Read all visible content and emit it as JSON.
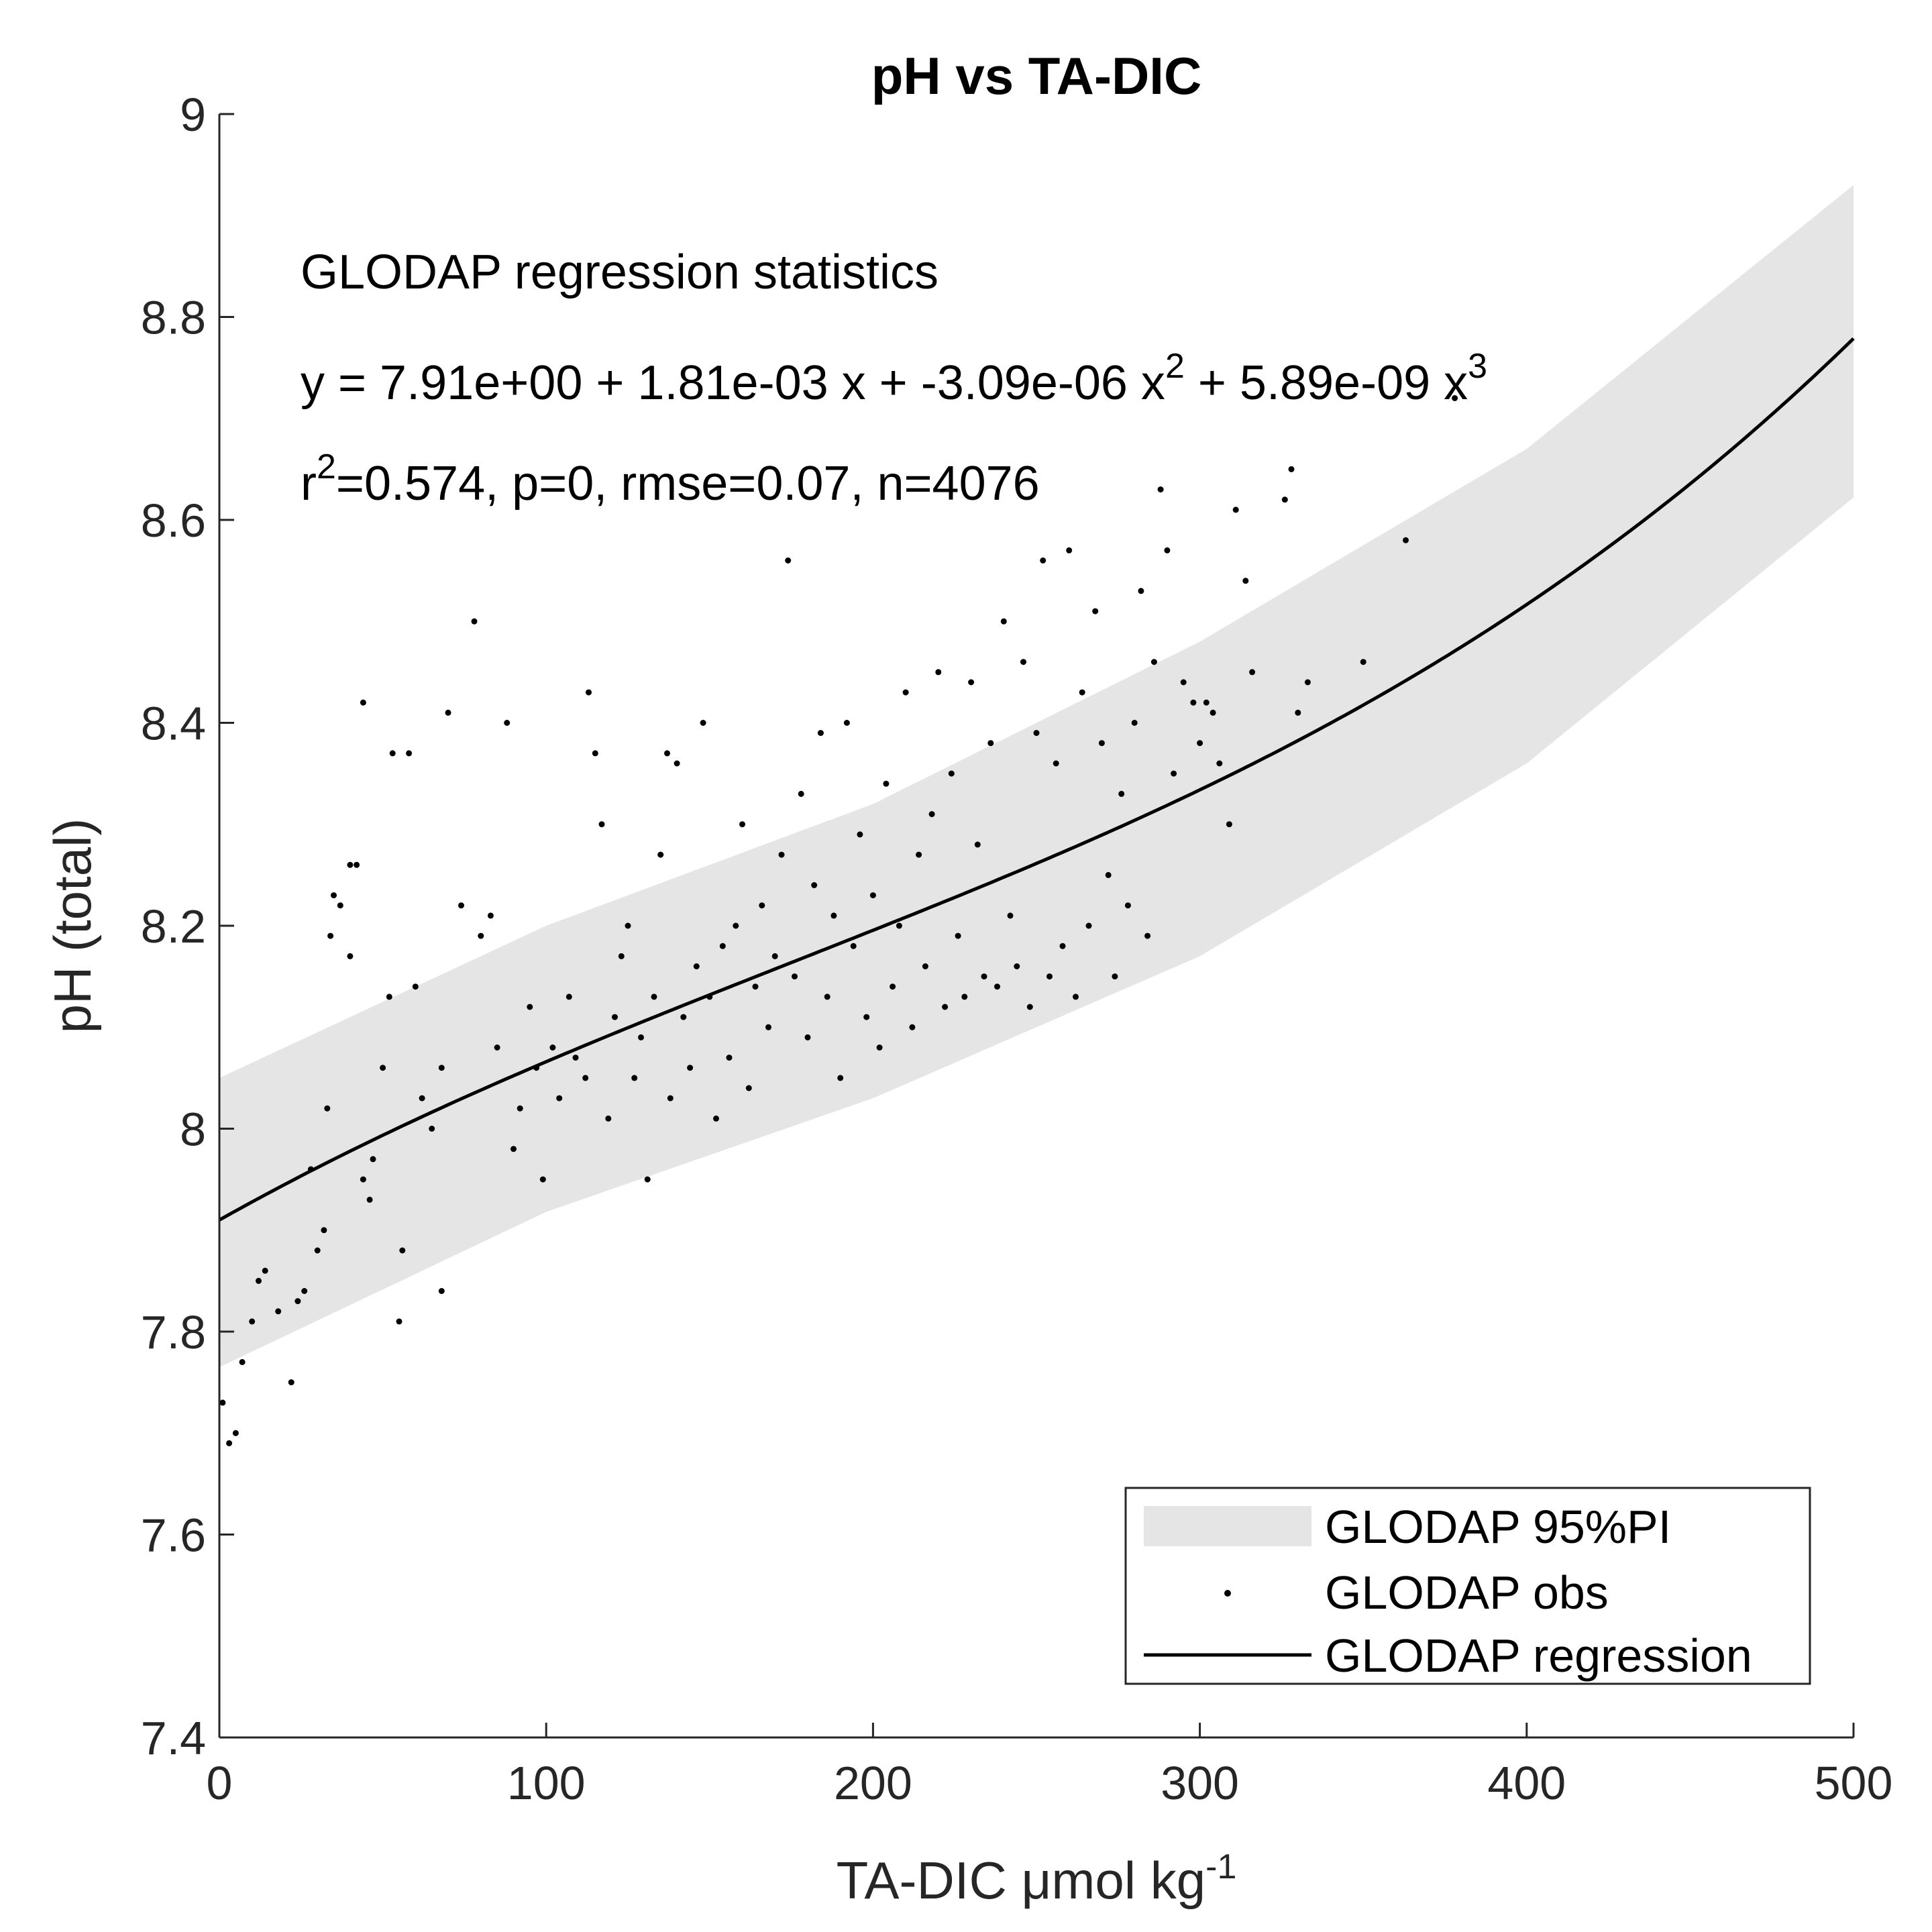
{
  "chart_data": {
    "type": "scatter",
    "title": "pH vs TA-DIC",
    "xlabel": "TA-DIC μmol kg",
    "xlabel_superscript": "-1",
    "ylabel": "pH (total)",
    "xlim": [
      0,
      500
    ],
    "ylim": [
      7.4,
      9
    ],
    "xticks": [
      0,
      100,
      200,
      300,
      400,
      500
    ],
    "xtick_labels": [
      "0",
      "100",
      "200",
      "300",
      "400",
      "500"
    ],
    "yticks": [
      7.4,
      7.6,
      7.8,
      8,
      8.2,
      8.4,
      8.6,
      8.8,
      9
    ],
    "ytick_labels": [
      "7.4",
      "7.6",
      "7.8",
      "8",
      "8.2",
      "8.4",
      "8.6",
      "8.8",
      "9"
    ],
    "grid": false,
    "legend_position": "bottom-right",
    "regression": {
      "coefficients": [
        7.91,
        0.00181,
        -3.09e-06,
        5.89e-09
      ],
      "x_range": [
        0,
        500
      ]
    },
    "prediction_interval": {
      "x": [
        0,
        100,
        200,
        300,
        400,
        500
      ],
      "lower": [
        7.765,
        7.918,
        8.03,
        8.17,
        8.36,
        8.622
      ],
      "upper": [
        8.05,
        8.2,
        8.32,
        8.48,
        8.67,
        8.93
      ]
    },
    "series": [
      {
        "name": "GLODAP 95%PI",
        "type": "band",
        "color": "#e5e5e5"
      },
      {
        "name": "GLODAP obs",
        "type": "scatter",
        "color": "#000000",
        "points": [
          [
            1,
            7.73
          ],
          [
            3,
            7.69
          ],
          [
            5,
            7.7
          ],
          [
            7,
            7.77
          ],
          [
            10,
            7.81
          ],
          [
            12,
            7.85
          ],
          [
            14,
            7.86
          ],
          [
            18,
            7.82
          ],
          [
            22,
            7.75
          ],
          [
            24,
            7.83
          ],
          [
            26,
            7.84
          ],
          [
            28,
            7.96
          ],
          [
            30,
            7.88
          ],
          [
            32,
            7.9
          ],
          [
            33,
            8.02
          ],
          [
            34,
            8.19
          ],
          [
            35,
            8.23
          ],
          [
            37,
            8.22
          ],
          [
            40,
            8.26
          ],
          [
            42,
            8.26
          ],
          [
            40,
            8.17
          ],
          [
            44,
            7.95
          ],
          [
            44,
            8.42
          ],
          [
            46,
            7.93
          ],
          [
            47,
            7.97
          ],
          [
            50,
            8.06
          ],
          [
            52,
            8.13
          ],
          [
            53,
            8.37
          ],
          [
            55,
            7.81
          ],
          [
            58,
            8.37
          ],
          [
            56,
            7.88
          ],
          [
            60,
            8.14
          ],
          [
            62,
            8.03
          ],
          [
            65,
            8.0
          ],
          [
            68,
            8.06
          ],
          [
            68,
            7.84
          ],
          [
            70,
            8.41
          ],
          [
            74,
            8.22
          ],
          [
            78,
            8.5
          ],
          [
            80,
            8.19
          ],
          [
            83,
            8.21
          ],
          [
            85,
            8.08
          ],
          [
            88,
            8.4
          ],
          [
            90,
            7.98
          ],
          [
            92,
            8.02
          ],
          [
            95,
            8.12
          ],
          [
            97,
            8.06
          ],
          [
            99,
            7.95
          ],
          [
            102,
            8.08
          ],
          [
            104,
            8.03
          ],
          [
            107,
            8.13
          ],
          [
            109,
            8.07
          ],
          [
            112,
            8.05
          ],
          [
            113,
            8.43
          ],
          [
            115,
            8.37
          ],
          [
            117,
            8.3
          ],
          [
            119,
            8.01
          ],
          [
            121,
            8.11
          ],
          [
            123,
            8.17
          ],
          [
            125,
            8.2
          ],
          [
            127,
            8.05
          ],
          [
            129,
            8.09
          ],
          [
            131,
            7.95
          ],
          [
            133,
            8.13
          ],
          [
            135,
            8.27
          ],
          [
            137,
            8.37
          ],
          [
            138,
            8.03
          ],
          [
            140,
            8.36
          ],
          [
            142,
            8.11
          ],
          [
            144,
            8.06
          ],
          [
            146,
            8.16
          ],
          [
            148,
            8.4
          ],
          [
            150,
            8.13
          ],
          [
            152,
            8.01
          ],
          [
            154,
            8.18
          ],
          [
            156,
            8.07
          ],
          [
            158,
            8.2
          ],
          [
            160,
            8.3
          ],
          [
            162,
            8.04
          ],
          [
            164,
            8.14
          ],
          [
            166,
            8.22
          ],
          [
            168,
            8.1
          ],
          [
            170,
            8.17
          ],
          [
            172,
            8.27
          ],
          [
            174,
            8.56
          ],
          [
            176,
            8.15
          ],
          [
            178,
            8.33
          ],
          [
            180,
            8.09
          ],
          [
            182,
            8.24
          ],
          [
            184,
            8.39
          ],
          [
            186,
            8.13
          ],
          [
            188,
            8.21
          ],
          [
            190,
            8.05
          ],
          [
            192,
            8.4
          ],
          [
            194,
            8.18
          ],
          [
            196,
            8.29
          ],
          [
            198,
            8.11
          ],
          [
            200,
            8.23
          ],
          [
            202,
            8.08
          ],
          [
            204,
            8.34
          ],
          [
            206,
            8.14
          ],
          [
            208,
            8.2
          ],
          [
            210,
            8.43
          ],
          [
            212,
            8.1
          ],
          [
            214,
            8.27
          ],
          [
            216,
            8.16
          ],
          [
            218,
            8.31
          ],
          [
            220,
            8.45
          ],
          [
            222,
            8.12
          ],
          [
            224,
            8.35
          ],
          [
            226,
            8.19
          ],
          [
            228,
            8.13
          ],
          [
            230,
            8.44
          ],
          [
            232,
            8.28
          ],
          [
            234,
            8.15
          ],
          [
            236,
            8.38
          ],
          [
            238,
            8.14
          ],
          [
            240,
            8.5
          ],
          [
            242,
            8.21
          ],
          [
            244,
            8.16
          ],
          [
            246,
            8.46
          ],
          [
            248,
            8.12
          ],
          [
            250,
            8.39
          ],
          [
            252,
            8.56
          ],
          [
            254,
            8.15
          ],
          [
            256,
            8.36
          ],
          [
            258,
            8.18
          ],
          [
            260,
            8.57
          ],
          [
            262,
            8.13
          ],
          [
            264,
            8.43
          ],
          [
            266,
            8.2
          ],
          [
            268,
            8.51
          ],
          [
            270,
            8.38
          ],
          [
            272,
            8.25
          ],
          [
            274,
            8.15
          ],
          [
            276,
            8.33
          ],
          [
            278,
            8.22
          ],
          [
            280,
            8.4
          ],
          [
            282,
            8.53
          ],
          [
            284,
            8.19
          ],
          [
            286,
            8.46
          ],
          [
            288,
            8.63
          ],
          [
            290,
            8.57
          ],
          [
            292,
            8.35
          ],
          [
            295,
            8.44
          ],
          [
            298,
            8.42
          ],
          [
            300,
            8.38
          ],
          [
            302,
            8.42
          ],
          [
            304,
            8.41
          ],
          [
            306,
            8.36
          ],
          [
            309,
            8.3
          ],
          [
            311,
            8.61
          ],
          [
            314,
            8.54
          ],
          [
            316,
            8.45
          ],
          [
            326,
            8.62
          ],
          [
            328,
            8.65
          ],
          [
            330,
            8.41
          ],
          [
            333,
            8.44
          ],
          [
            350,
            8.46
          ],
          [
            363,
            8.58
          ],
          [
            378,
            8.72
          ]
        ]
      },
      {
        "name": "GLODAP regression",
        "type": "line",
        "color": "#000000"
      }
    ],
    "annotations": [
      {
        "text": "GLODAP regression statistics"
      },
      {
        "text": "y = 7.91e+00 + 1.81e-03 x + -3.09e-06 x",
        "superscript": "2",
        "text2": " + 5.89e-09 x",
        "superscript2": "3"
      },
      {
        "text": "r",
        "superscript": "2",
        "text2": "=0.574, p=0, rmse=0.07, n=4076"
      }
    ]
  }
}
